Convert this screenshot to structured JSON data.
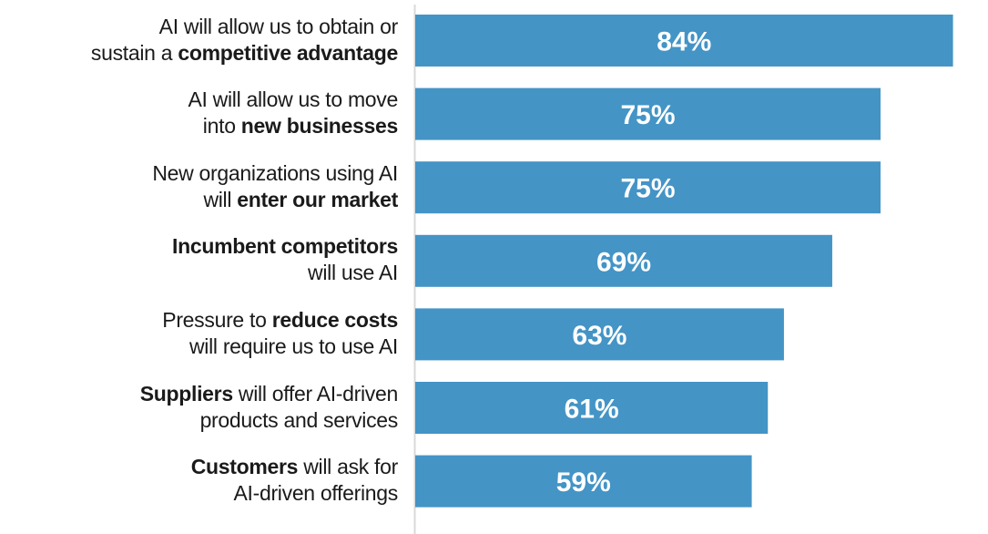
{
  "chart_data": {
    "type": "bar",
    "orientation": "horizontal",
    "categories": [
      [
        {
          "text": "AI will allow us to obtain or",
          "bold": false
        },
        {
          "br": true
        },
        {
          "text": "sustain a ",
          "bold": false
        },
        {
          "text": "competitive advantage",
          "bold": true
        }
      ],
      [
        {
          "text": "AI will allow us to move",
          "bold": false
        },
        {
          "br": true
        },
        {
          "text": "into ",
          "bold": false
        },
        {
          "text": "new businesses",
          "bold": true
        }
      ],
      [
        {
          "text": "New organizations using AI",
          "bold": false
        },
        {
          "br": true
        },
        {
          "text": "will ",
          "bold": false
        },
        {
          "text": "enter our market",
          "bold": true
        }
      ],
      [
        {
          "text": "Incumbent competitors",
          "bold": true
        },
        {
          "br": true
        },
        {
          "text": "will use AI",
          "bold": false
        }
      ],
      [
        {
          "text": "Pressure to ",
          "bold": false
        },
        {
          "text": "reduce costs",
          "bold": true
        },
        {
          "br": true
        },
        {
          "text": "will require us to use AI",
          "bold": false
        }
      ],
      [
        {
          "text": "Suppliers",
          "bold": true
        },
        {
          "text": " will offer AI-driven",
          "bold": false
        },
        {
          "br": true
        },
        {
          "text": "products and services",
          "bold": false
        }
      ],
      [
        {
          "text": "Customers",
          "bold": true
        },
        {
          "text": " will ask for",
          "bold": false
        },
        {
          "br": true
        },
        {
          "text": "AI-driven offerings",
          "bold": false
        }
      ]
    ],
    "values": [
      84,
      75,
      75,
      69,
      63,
      61,
      59
    ],
    "data_labels": [
      "84%",
      "75%",
      "75%",
      "69%",
      "63%",
      "61%",
      "59%"
    ],
    "unit": "%",
    "bar_color": "#4494c6",
    "label_color": "#ffffff",
    "grid": false,
    "legend": "none"
  }
}
